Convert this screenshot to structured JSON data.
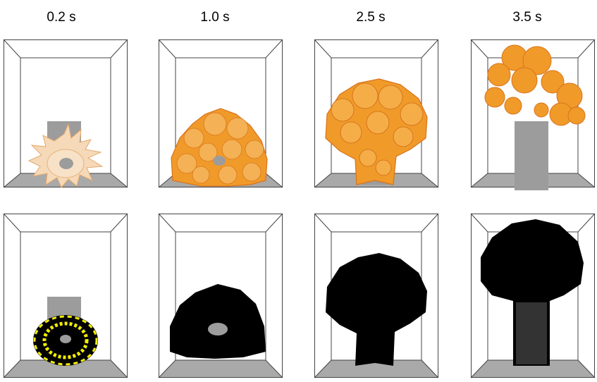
{
  "time_labels": [
    "0.2 s",
    "1.0 s",
    "2.5 s",
    "3.5 s"
  ],
  "colors": {
    "box_edge": "#444444",
    "floor": "#a9a9a9",
    "obstacle": "#9c9c9c",
    "flame_light": "#f5d9b8",
    "flame_orange": "#f09a2a",
    "flame_dark": "#d9731a",
    "particle_black": "#000000",
    "particle_yellow": "#f2ee00"
  },
  "panel_types": [
    "flame-surface",
    "particle-cloud"
  ]
}
